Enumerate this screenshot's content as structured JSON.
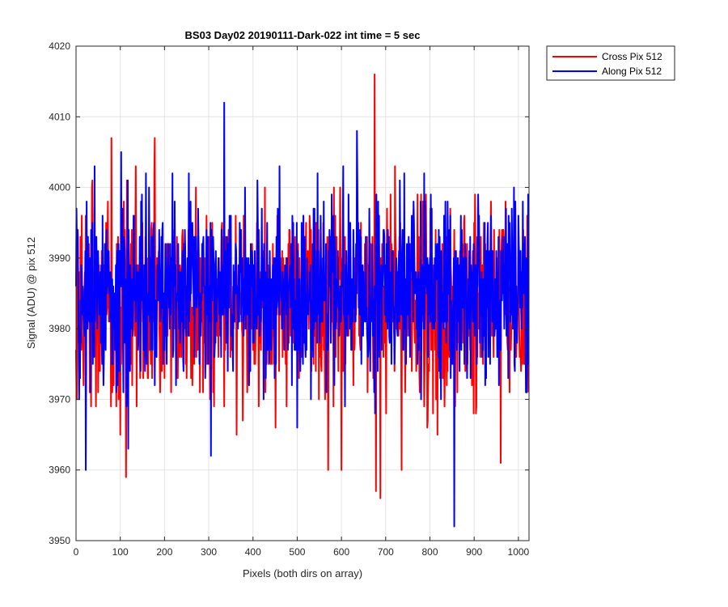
{
  "chart_data": {
    "type": "line",
    "title": "BS03 Day02 20190111-Dark-022 int time = 5 sec",
    "xlabel": "Pixels (both dirs on array)",
    "ylabel": "Signal (ADU) @ pix 512",
    "xlim": [
      0,
      1024
    ],
    "ylim": [
      3950,
      4020
    ],
    "x_ticks": [
      0,
      100,
      200,
      300,
      400,
      500,
      600,
      700,
      800,
      900,
      1000
    ],
    "y_ticks": [
      3950,
      3960,
      3970,
      3980,
      3990,
      4000,
      4010,
      4020
    ],
    "grid": true,
    "legend_position": "outside-top-right",
    "series": [
      {
        "name": "Cross Pix 512",
        "color": "#ff0000",
        "n_points": 1024,
        "mean": 3984,
        "min": 3956,
        "max": 4016,
        "notable_points": [
          {
            "x": 2,
            "y": 3970
          },
          {
            "x": 80,
            "y": 4007
          },
          {
            "x": 100,
            "y": 3965
          },
          {
            "x": 113,
            "y": 3959
          },
          {
            "x": 178,
            "y": 4007
          },
          {
            "x": 570,
            "y": 3960
          },
          {
            "x": 600,
            "y": 3960
          },
          {
            "x": 675,
            "y": 4016
          },
          {
            "x": 678,
            "y": 3957
          },
          {
            "x": 688,
            "y": 3956
          },
          {
            "x": 960,
            "y": 3961
          }
        ]
      },
      {
        "name": "Along Pix 512",
        "color": "#0000ff",
        "n_points": 1024,
        "mean": 3985,
        "min": 3952,
        "max": 4012,
        "notable_points": [
          {
            "x": 22,
            "y": 3960
          },
          {
            "x": 42,
            "y": 4003
          },
          {
            "x": 102,
            "y": 4005
          },
          {
            "x": 305,
            "y": 3962
          },
          {
            "x": 335,
            "y": 4012
          },
          {
            "x": 635,
            "y": 4008
          },
          {
            "x": 855,
            "y": 3952
          }
        ]
      }
    ]
  }
}
